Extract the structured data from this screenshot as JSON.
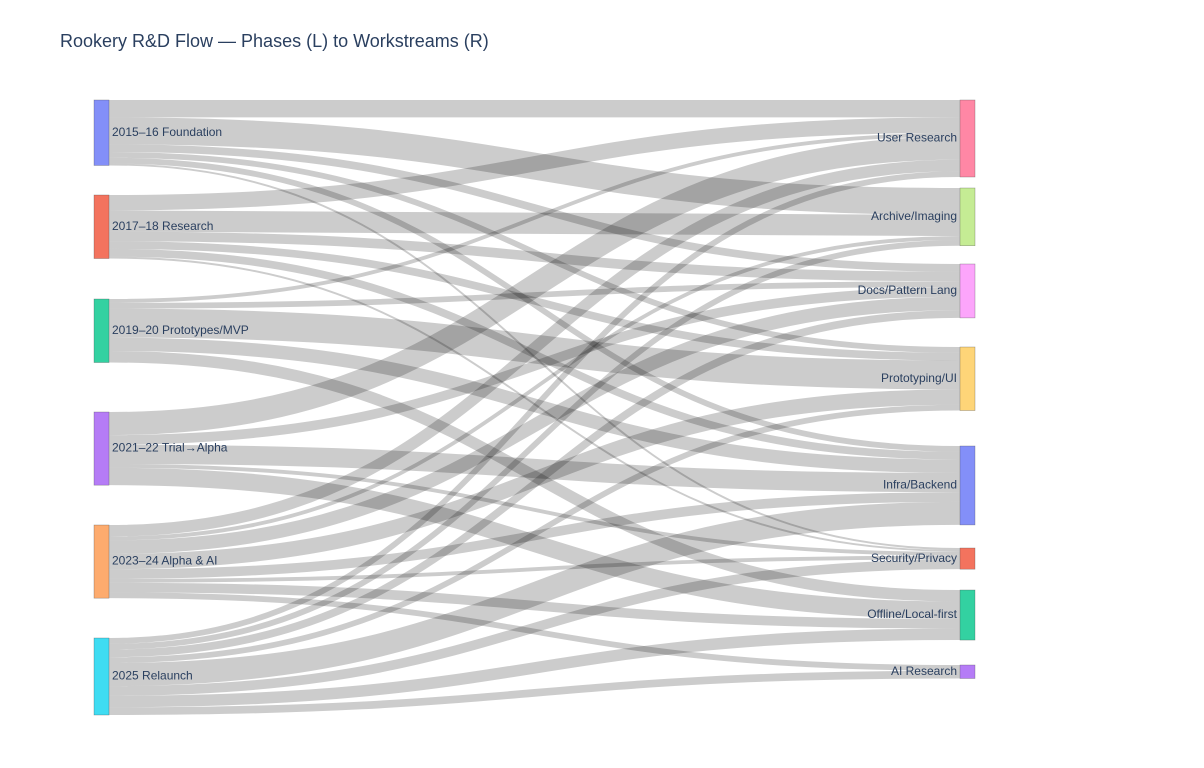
{
  "chart_data": {
    "type": "sankey",
    "title": "Rookery R&D Flow — Phases (L) to Workstreams (R)",
    "sources": [
      {
        "name": "2015–16 Foundation",
        "color": "#838ff8"
      },
      {
        "name": "2017–18 Research",
        "color": "#f3735e"
      },
      {
        "name": "2019–20 Prototypes/MVP",
        "color": "#33d1a1"
      },
      {
        "name": "2021–22 Trial→Alpha",
        "color": "#b57cf6"
      },
      {
        "name": "2023–24 Alpha & AI",
        "color": "#fdab6e"
      },
      {
        "name": "2025 Relaunch",
        "color": "#3fdcf2"
      }
    ],
    "targets": [
      {
        "name": "User Research",
        "color": "#ff87a5"
      },
      {
        "name": "Archive/Imaging",
        "color": "#c5ec94"
      },
      {
        "name": "Docs/Pattern Lang",
        "color": "#fca5fb"
      },
      {
        "name": "Prototyping/UI",
        "color": "#fed578"
      },
      {
        "name": "Infra/Backend",
        "color": "#838ff8"
      },
      {
        "name": "Security/Privacy",
        "color": "#f3735e"
      },
      {
        "name": "Offline/Local-first",
        "color": "#33d1a1"
      },
      {
        "name": "AI Research",
        "color": "#b57cf6"
      }
    ],
    "links": [
      {
        "source": 0,
        "target": 0,
        "value": 18
      },
      {
        "source": 0,
        "target": 1,
        "value": 28
      },
      {
        "source": 0,
        "target": 2,
        "value": 8
      },
      {
        "source": 0,
        "target": 3,
        "value": 6
      },
      {
        "source": 0,
        "target": 4,
        "value": 6
      },
      {
        "source": 0,
        "target": 5,
        "value": 2
      },
      {
        "source": 1,
        "target": 0,
        "value": 16
      },
      {
        "source": 1,
        "target": 1,
        "value": 22
      },
      {
        "source": 1,
        "target": 2,
        "value": 10
      },
      {
        "source": 1,
        "target": 3,
        "value": 8
      },
      {
        "source": 1,
        "target": 4,
        "value": 8
      },
      {
        "source": 1,
        "target": 5,
        "value": 2
      },
      {
        "source": 2,
        "target": 0,
        "value": 4
      },
      {
        "source": 2,
        "target": 2,
        "value": 6
      },
      {
        "source": 2,
        "target": 3,
        "value": 30
      },
      {
        "source": 2,
        "target": 4,
        "value": 14
      },
      {
        "source": 2,
        "target": 6,
        "value": 12
      },
      {
        "source": 3,
        "target": 0,
        "value": 24
      },
      {
        "source": 3,
        "target": 2,
        "value": 10
      },
      {
        "source": 3,
        "target": 4,
        "value": 20
      },
      {
        "source": 3,
        "target": 5,
        "value": 4
      },
      {
        "source": 3,
        "target": 6,
        "value": 18
      },
      {
        "source": 4,
        "target": 0,
        "value": 12
      },
      {
        "source": 4,
        "target": 1,
        "value": 4
      },
      {
        "source": 4,
        "target": 2,
        "value": 14
      },
      {
        "source": 4,
        "target": 3,
        "value": 16
      },
      {
        "source": 4,
        "target": 4,
        "value": 10
      },
      {
        "source": 4,
        "target": 5,
        "value": 4
      },
      {
        "source": 4,
        "target": 6,
        "value": 10
      },
      {
        "source": 4,
        "target": 7,
        "value": 6
      },
      {
        "source": 5,
        "target": 0,
        "value": 6
      },
      {
        "source": 5,
        "target": 1,
        "value": 6
      },
      {
        "source": 5,
        "target": 2,
        "value": 8
      },
      {
        "source": 5,
        "target": 3,
        "value": 6
      },
      {
        "source": 5,
        "target": 4,
        "value": 24
      },
      {
        "source": 5,
        "target": 5,
        "value": 10
      },
      {
        "source": 5,
        "target": 6,
        "value": 12
      },
      {
        "source": 5,
        "target": 7,
        "value": 8
      }
    ]
  }
}
